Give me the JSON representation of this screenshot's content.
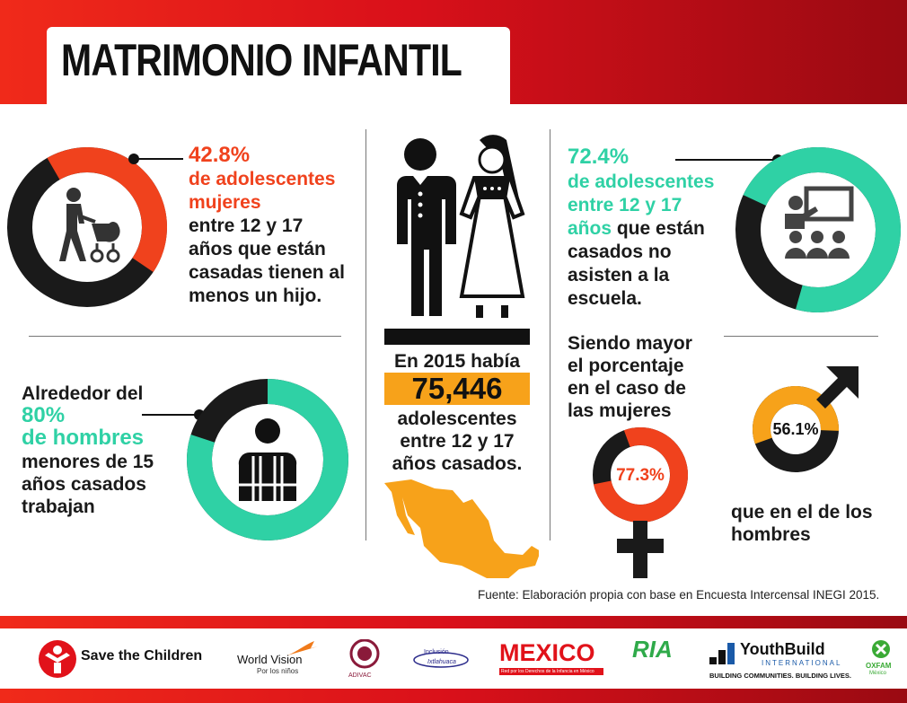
{
  "title": "MATRIMONIO INFANTIL",
  "colors": {
    "red": "#f0421d",
    "teal": "#2fd1a5",
    "orange": "#f7a21a",
    "dark": "#111111"
  },
  "block1": {
    "pct": "42.8%",
    "line1": "de adolescentes",
    "line2": "mujeres",
    "rest": [
      "entre 12 y 17",
      "años que están",
      "casadas tienen al",
      "menos un hijo."
    ],
    "value": 42.8,
    "icon": "mother-stroller-icon"
  },
  "block2": {
    "line0": "Alrededor del",
    "pct": "80%",
    "line1": "de hombres",
    "rest": [
      "menores de 15",
      "años casados",
      "trabajan"
    ],
    "value": 80,
    "icon": "worker-icon"
  },
  "center": {
    "line1": "En 2015 había",
    "number": "75,446",
    "rest": [
      "adolescentes",
      "entre 12 y 17",
      "años casados."
    ],
    "icons": [
      "couple-icon",
      "mexico-map-icon"
    ]
  },
  "block3": {
    "pct": "72.4%",
    "line1": "de adolescentes",
    "line2": "entre 12 y 17",
    "line3a": "años",
    "line3b": "que están",
    "rest": [
      "casados no",
      "asisten a la",
      "escuela."
    ],
    "value": 72.4,
    "icon": "classroom-icon"
  },
  "block4": {
    "lines": [
      "Siendo mayor",
      "el porcentaje",
      "en el caso de",
      "las mujeres"
    ],
    "female_pct": "77.3%",
    "female_value": 77.3,
    "male_pct": "56.1%",
    "male_value": 56.1,
    "bottom": [
      "que en el de los",
      "hombres"
    ],
    "icons": [
      "female-symbol-icon",
      "male-symbol-icon"
    ]
  },
  "source": "Fuente: Elaboración propia con base en Encuesta Intercensal INEGI 2015.",
  "logos": {
    "save": "Save the Children",
    "worldvision": "World Vision",
    "worldvision_sub": "Por los niños",
    "adivac": "ADIVAC",
    "inclusion1": "Inclusión",
    "inclusion2": "Ixtlahuaca",
    "mexico": "MEXICO",
    "mexico_sub": "Red por los Derechos de la Infancia en México",
    "ria": "RIA",
    "youthbuild": "YouthBuild",
    "youthbuild_intl": "INTERNATIONAL",
    "youthbuild_tag": "BUILDING COMMUNITIES. BUILDING LIVES.",
    "oxfam": "OXFAM",
    "oxfam_sub": "México"
  }
}
